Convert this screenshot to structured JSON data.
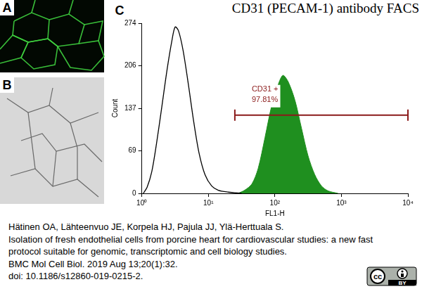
{
  "chart_data": {
    "type": "line",
    "title": "CD31 (PECAM-1) antibody FACS",
    "x_label": "FL1-H",
    "y_label": "Count",
    "log": "x",
    "grid": false,
    "xlim": [
      1,
      10000
    ],
    "xticks": [
      {
        "value": 1,
        "label": "10⁰"
      },
      {
        "value": 10,
        "label": "10¹"
      },
      {
        "value": 100,
        "label": "10²"
      },
      {
        "value": 1000,
        "label": "10³"
      },
      {
        "value": 10000,
        "label": "10⁴"
      }
    ],
    "ylim": [
      0,
      274
    ],
    "yticks": [
      0,
      69,
      137,
      206,
      274
    ],
    "series": [
      {
        "type": "line",
        "color": "#000000",
        "x": [
          1.05,
          1.2,
          1.41,
          1.66,
          2.0,
          2.4,
          2.82,
          3.16,
          3.55,
          4.17,
          5.01,
          6.03,
          7.24,
          8.91,
          11.2,
          14.1,
          20,
          31.6
        ],
        "values": [
          0,
          10,
          35,
          80,
          140,
          200,
          245,
          268,
          262,
          230,
          175,
          115,
          65,
          30,
          12,
          5,
          2,
          0
        ]
      },
      {
        "type": "area",
        "color": "#1f8f1f",
        "x": [
          28,
          35,
          45,
          56,
          71,
          89,
          112,
          132,
          158,
          200,
          251,
          316,
          398,
          501,
          631,
          891
        ],
        "values": [
          0,
          5,
          15,
          40,
          90,
          140,
          175,
          190,
          180,
          150,
          105,
          60,
          30,
          12,
          4,
          0
        ]
      }
    ],
    "gate": {
      "x": [
        25,
        10000
      ],
      "y": 126,
      "color": "#8b1a1a",
      "labels": [
        "CD31 +",
        "97.81%"
      ]
    }
  },
  "panel_labels": [
    "A",
    "B",
    "C"
  ],
  "citation": [
    "Hätinen OA, Lähteenvuo JE, Korpela HJ, Pajula JJ, Ylä-Herttuala S.",
    "Isolation of fresh endothelial cells from porcine heart for cardiovascular studies: a new fast",
    "protocol suitable for genomic, transcriptomic and cell biology studies.",
    "BMC Mol Cell Biol. 2019 Aug 13;20(1):32.",
    "doi: 10.1186/s12860-019-0215-2."
  ],
  "badge": [
    "cc",
    "BY"
  ]
}
